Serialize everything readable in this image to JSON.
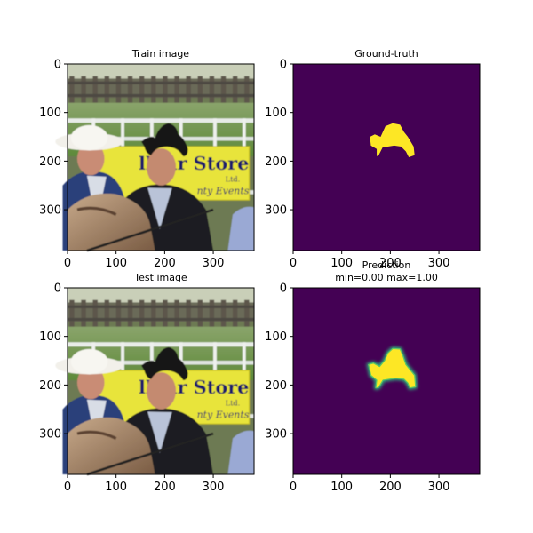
{
  "chart_data": [
    {
      "type": "image",
      "title": "Train image",
      "content": "photo",
      "xlim": [
        0,
        384
      ],
      "ylim": [
        384,
        0
      ],
      "xticks": [
        0,
        100,
        200,
        300
      ],
      "yticks": [
        0,
        100,
        200,
        300
      ],
      "scene": {
        "sign_text": "lklar Store",
        "sign_sub1": "Ltd.",
        "sign_sub2": "nty Events"
      }
    },
    {
      "type": "heatmap",
      "title": "Ground-truth",
      "colormap": "viridis",
      "background_value": 0,
      "foreground_value": 1,
      "xlim": [
        0,
        384
      ],
      "ylim": [
        384,
        0
      ],
      "xticks": [
        0,
        100,
        200,
        300
      ],
      "yticks": [
        0,
        100,
        200,
        300
      ],
      "mask_polygon": [
        [
          158,
          150
        ],
        [
          168,
          145
        ],
        [
          180,
          150
        ],
        [
          190,
          128
        ],
        [
          205,
          122
        ],
        [
          220,
          125
        ],
        [
          228,
          140
        ],
        [
          236,
          150
        ],
        [
          248,
          170
        ],
        [
          250,
          188
        ],
        [
          238,
          192
        ],
        [
          232,
          180
        ],
        [
          222,
          170
        ],
        [
          208,
          168
        ],
        [
          195,
          170
        ],
        [
          185,
          170
        ],
        [
          176,
          188
        ],
        [
          172,
          190
        ],
        [
          172,
          175
        ],
        [
          160,
          168
        ]
      ]
    },
    {
      "type": "image",
      "title": "Test image",
      "content": "photo",
      "xlim": [
        0,
        384
      ],
      "ylim": [
        384,
        0
      ],
      "xticks": [
        0,
        100,
        200,
        300
      ],
      "yticks": [
        0,
        100,
        200,
        300
      ],
      "scene": {
        "sign_text": "lklar Store",
        "sign_sub1": "Ltd.",
        "sign_sub2": "nty Events"
      }
    },
    {
      "type": "heatmap",
      "title": "Prediction",
      "subtitle": "min=0.00 max=1.00",
      "colormap": "viridis",
      "min": 0.0,
      "max": 1.0,
      "xlim": [
        0,
        384
      ],
      "ylim": [
        384,
        0
      ],
      "xticks": [
        0,
        100,
        200,
        300
      ],
      "yticks": [
        0,
        100,
        200,
        300
      ],
      "mask_polygon": [
        [
          155,
          158
        ],
        [
          165,
          155
        ],
        [
          178,
          162
        ],
        [
          188,
          150
        ],
        [
          195,
          134
        ],
        [
          205,
          125
        ],
        [
          220,
          126
        ],
        [
          226,
          140
        ],
        [
          232,
          158
        ],
        [
          250,
          180
        ],
        [
          252,
          204
        ],
        [
          240,
          206
        ],
        [
          236,
          196
        ],
        [
          228,
          188
        ],
        [
          212,
          186
        ],
        [
          198,
          188
        ],
        [
          185,
          190
        ],
        [
          176,
          205
        ],
        [
          170,
          206
        ],
        [
          172,
          190
        ],
        [
          160,
          180
        ]
      ]
    }
  ]
}
